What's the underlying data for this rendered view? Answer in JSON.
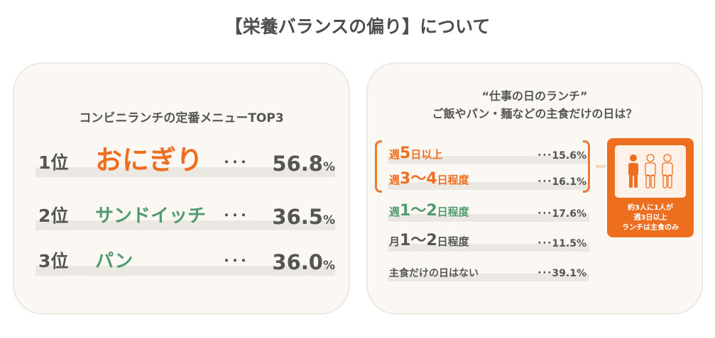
{
  "page": {
    "title": "【栄養バランスの偏り】について"
  },
  "left": {
    "heading": "コンビニランチの定番メニューTOP3",
    "items": [
      {
        "rank": "1位",
        "name": "おにぎり",
        "dots": "･･･",
        "value": "56.8",
        "unit": "%",
        "color": "#ee6e20"
      },
      {
        "rank": "2位",
        "name": "サンドイッチ",
        "dots": "･･･",
        "value": "36.5",
        "unit": "%",
        "color": "#4f9a6e"
      },
      {
        "rank": "3位",
        "name": "パン",
        "dots": "･･･",
        "value": "36.0",
        "unit": "%",
        "color": "#4f9a6e"
      }
    ]
  },
  "right": {
    "heading_line1": "“仕事の日のランチ”",
    "heading_line2": "ご飯やパン・麺などの主食だけの日は？",
    "rows": [
      {
        "pre": "週",
        "num": "5",
        "post": "日以上",
        "value": "･･･15.6%",
        "color": "orange"
      },
      {
        "pre": "週",
        "num": "3～4",
        "post": "日程度",
        "value": "･･･16.1%",
        "color": "orange"
      },
      {
        "pre": "週",
        "num": "1～2",
        "post": "日程度",
        "value": "･･･17.6%",
        "color": "green"
      },
      {
        "pre": "月",
        "num": "1～2",
        "post": "日程度",
        "value": "･･･11.5%",
        "color": "gray"
      },
      {
        "pre": "主食だけの日はない",
        "num": "",
        "post": "",
        "value": "･･･39.1%",
        "color": "gray"
      }
    ],
    "arrow": "»»»",
    "callout": {
      "line1": "約3人に1人が",
      "line2": "週3日以上",
      "line3": "ランチは主食のみ"
    }
  },
  "colors": {
    "accent": "#ee6e20",
    "green": "#4f9a6e",
    "card_bg": "#fbf8f4",
    "bar": "#ebe8e4"
  },
  "icons": {
    "highlighted_person": "person-icon-filled",
    "other_people": "person-icon-outline"
  }
}
